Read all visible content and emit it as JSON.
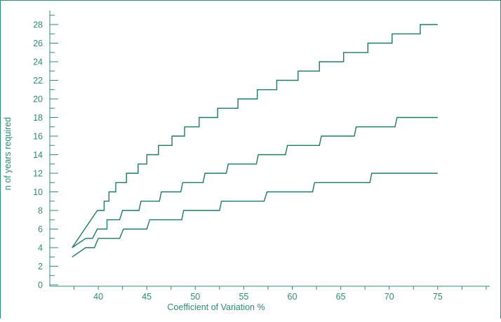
{
  "chart_data": {
    "type": "line",
    "title": "",
    "xlabel": "Coefficient of Variation %",
    "ylabel": "n of years required",
    "xlim": [
      35,
      80
    ],
    "ylim": [
      0,
      30
    ],
    "xticks": [
      40,
      45,
      50,
      55,
      60,
      65,
      70,
      75
    ],
    "yticks": [
      0,
      2,
      4,
      6,
      8,
      10,
      12,
      14,
      16,
      18,
      20,
      22,
      24,
      26,
      28
    ],
    "grid": false,
    "line_color": "#1f7a62",
    "axis_color": "#2e8b74",
    "series": [
      {
        "values": [
          [
            37.3,
            4
          ],
          [
            39.9,
            8
          ],
          [
            40.6,
            8
          ],
          [
            40.6,
            9
          ],
          [
            41.1,
            9
          ],
          [
            41.1,
            10
          ],
          [
            41.8,
            10
          ],
          [
            41.8,
            11
          ],
          [
            42.9,
            11
          ],
          [
            42.9,
            12
          ],
          [
            44.1,
            12
          ],
          [
            44.1,
            13
          ],
          [
            45.0,
            13
          ],
          [
            45.0,
            14
          ],
          [
            46.2,
            14
          ],
          [
            46.2,
            15
          ],
          [
            47.6,
            15
          ],
          [
            47.6,
            16
          ],
          [
            48.9,
            16
          ],
          [
            48.9,
            17
          ],
          [
            50.4,
            17
          ],
          [
            50.4,
            18
          ],
          [
            52.3,
            18
          ],
          [
            52.3,
            19
          ],
          [
            54.4,
            19
          ],
          [
            54.4,
            20
          ],
          [
            56.4,
            20
          ],
          [
            56.4,
            21
          ],
          [
            58.4,
            21
          ],
          [
            58.4,
            22
          ],
          [
            60.6,
            22
          ],
          [
            60.6,
            23
          ],
          [
            62.8,
            23
          ],
          [
            62.8,
            24
          ],
          [
            65.3,
            24
          ],
          [
            65.3,
            25
          ],
          [
            67.8,
            25
          ],
          [
            67.8,
            26
          ],
          [
            70.3,
            26
          ],
          [
            70.3,
            27
          ],
          [
            73.2,
            27
          ],
          [
            73.2,
            28
          ],
          [
            75.0,
            28
          ]
        ]
      },
      {
        "values": [
          [
            37.3,
            4
          ],
          [
            38.7,
            5
          ],
          [
            39.4,
            5
          ],
          [
            39.9,
            6
          ],
          [
            40.9,
            6
          ],
          [
            40.9,
            7
          ],
          [
            42.2,
            7
          ],
          [
            42.5,
            8
          ],
          [
            44.2,
            8
          ],
          [
            44.4,
            9
          ],
          [
            46.3,
            9
          ],
          [
            46.5,
            10
          ],
          [
            48.5,
            10
          ],
          [
            48.7,
            11
          ],
          [
            50.8,
            11
          ],
          [
            51.0,
            12
          ],
          [
            53.2,
            12
          ],
          [
            53.4,
            13
          ],
          [
            56.3,
            13
          ],
          [
            56.5,
            14
          ],
          [
            59.3,
            14
          ],
          [
            59.5,
            15
          ],
          [
            62.8,
            15
          ],
          [
            63.0,
            16
          ],
          [
            66.4,
            16
          ],
          [
            66.6,
            17
          ],
          [
            70.6,
            17
          ],
          [
            70.8,
            18
          ],
          [
            75.0,
            18
          ]
        ]
      },
      {
        "values": [
          [
            37.3,
            3
          ],
          [
            38.7,
            4
          ],
          [
            39.6,
            4
          ],
          [
            40.0,
            5
          ],
          [
            42.2,
            5
          ],
          [
            42.6,
            6
          ],
          [
            45.0,
            6
          ],
          [
            45.3,
            7
          ],
          [
            48.6,
            7
          ],
          [
            48.8,
            8
          ],
          [
            52.5,
            8
          ],
          [
            52.7,
            9
          ],
          [
            57.1,
            9
          ],
          [
            57.4,
            10
          ],
          [
            62.1,
            10
          ],
          [
            62.3,
            11
          ],
          [
            68.0,
            11
          ],
          [
            68.2,
            12
          ],
          [
            75.0,
            12
          ]
        ]
      }
    ]
  }
}
